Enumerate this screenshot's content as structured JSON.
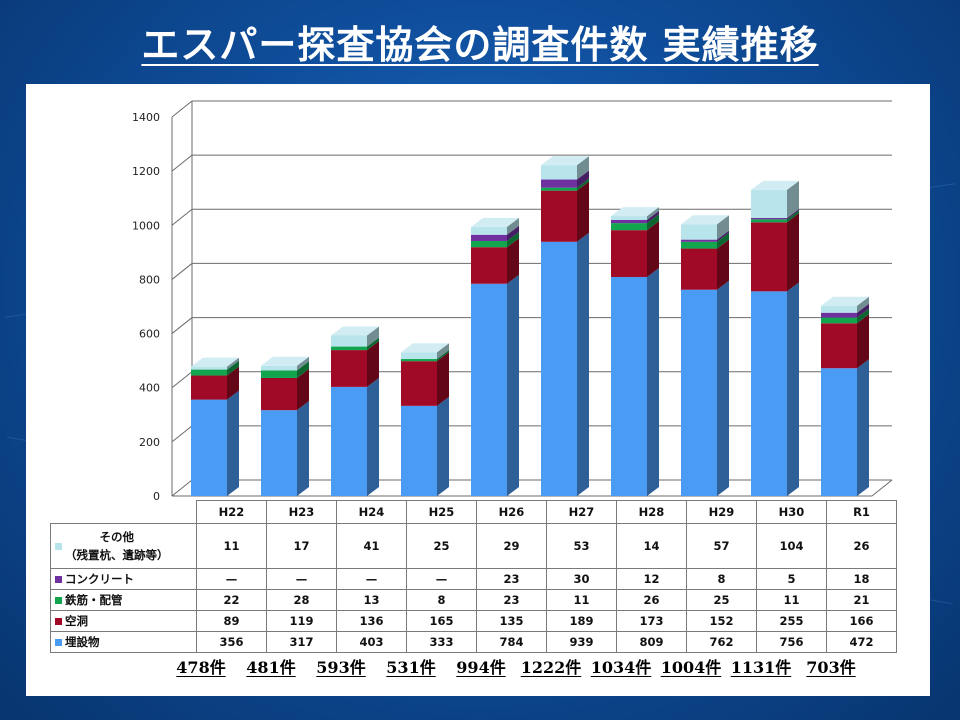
{
  "title": "エスパー探査協会の調査件数 実績推移",
  "colors": {
    "buried": "#4a9bf4",
    "cavity": "#a00a26",
    "rebar": "#12a54e",
    "concrete": "#7030a0",
    "other": "#b8e4ec"
  },
  "chart_data": {
    "type": "bar",
    "stacked": true,
    "three_d": true,
    "categories": [
      "H22",
      "H23",
      "H24",
      "H25",
      "H26",
      "H27",
      "H28",
      "H29",
      "H30",
      "R1"
    ],
    "series": [
      {
        "name": "埋設物",
        "color": "#4a9bf4",
        "values": [
          356,
          317,
          403,
          333,
          784,
          939,
          809,
          762,
          756,
          472
        ]
      },
      {
        "name": "空洞",
        "color": "#a00a26",
        "values": [
          89,
          119,
          136,
          165,
          135,
          189,
          173,
          152,
          255,
          166
        ]
      },
      {
        "name": "鉄筋・配管",
        "color": "#12a54e",
        "values": [
          22,
          28,
          13,
          8,
          23,
          11,
          26,
          25,
          11,
          21
        ]
      },
      {
        "name": "コンクリート",
        "color": "#7030a0",
        "values": [
          null,
          null,
          null,
          null,
          23,
          30,
          12,
          8,
          5,
          18
        ]
      },
      {
        "name": "その他（残置杭、遺跡等）",
        "color": "#b8e4ec",
        "values": [
          11,
          17,
          41,
          25,
          29,
          53,
          14,
          57,
          104,
          26
        ]
      }
    ],
    "ylim": [
      0,
      1400
    ],
    "yticks": [
      0,
      200,
      400,
      600,
      800,
      1000,
      1200,
      1400
    ],
    "grid": true,
    "legend": "table-below",
    "totals": [
      "478件",
      "481件",
      "593件",
      "531件",
      "994件",
      "1222件",
      "1034件",
      "1004件",
      "1131件",
      "703件"
    ]
  },
  "table": {
    "row_labels": {
      "other_line1": "その他",
      "other_line2": "（残置杭、遺跡等）",
      "concrete": "コンクリート",
      "rebar": "鉄筋・配管",
      "cavity": "空洞",
      "buried": "埋設物"
    },
    "other": [
      "11",
      "17",
      "41",
      "25",
      "29",
      "53",
      "14",
      "57",
      "104",
      "26"
    ],
    "concrete": [
      "—",
      "—",
      "—",
      "—",
      "23",
      "30",
      "12",
      "8",
      "5",
      "18"
    ],
    "rebar": [
      "22",
      "28",
      "13",
      "8",
      "23",
      "11",
      "26",
      "25",
      "11",
      "21"
    ],
    "cavity": [
      "89",
      "119",
      "136",
      "165",
      "135",
      "189",
      "173",
      "152",
      "255",
      "166"
    ],
    "buried": [
      "356",
      "317",
      "403",
      "333",
      "784",
      "939",
      "809",
      "762",
      "756",
      "472"
    ]
  }
}
